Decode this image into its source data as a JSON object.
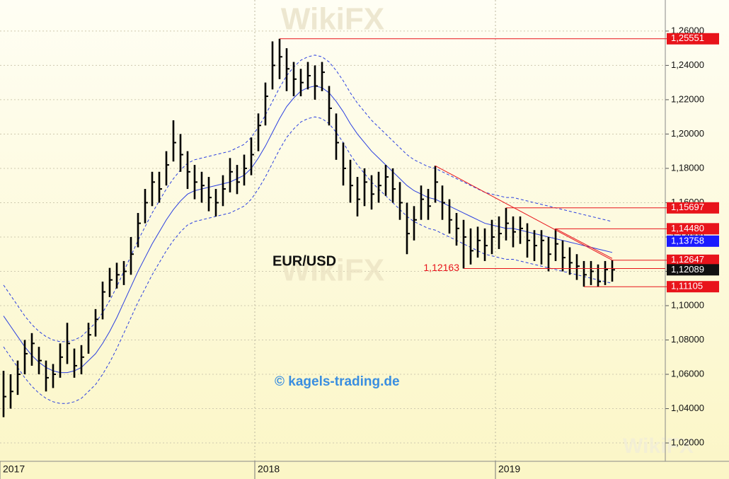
{
  "chart_data": {
    "type": "ohlc",
    "title": "EUR/USD",
    "credit": "© kagels-trading.de",
    "watermark": "WikiFX",
    "categories": [
      "2017",
      null,
      null,
      null,
      null,
      null,
      null,
      null,
      null,
      null,
      null,
      null,
      null,
      null,
      null,
      null,
      null,
      null,
      null,
      null,
      null,
      null,
      null,
      null,
      null,
      null,
      null,
      null,
      null,
      null,
      null,
      null,
      null,
      null,
      null,
      null,
      "2018",
      null,
      null,
      null,
      null,
      null,
      null,
      null,
      null,
      null,
      null,
      null,
      null,
      null,
      null,
      null,
      null,
      null,
      null,
      null,
      null,
      null,
      null,
      null,
      null,
      null,
      null,
      null,
      null,
      null,
      null,
      null,
      null,
      null,
      "2019",
      null,
      null,
      null,
      null,
      null,
      null,
      null,
      null,
      null,
      null,
      null,
      null,
      null,
      null,
      null,
      null
    ],
    "high": [
      1.062,
      1.06,
      1.068,
      1.08,
      1.084,
      1.076,
      1.068,
      1.066,
      1.078,
      1.09,
      1.075,
      1.077,
      1.09,
      1.098,
      1.114,
      1.122,
      1.125,
      1.126,
      1.14,
      1.154,
      1.168,
      1.178,
      1.178,
      1.19,
      1.208,
      1.2,
      1.19,
      1.182,
      1.178,
      1.175,
      1.168,
      1.176,
      1.186,
      1.182,
      1.188,
      1.198,
      1.212,
      1.23,
      1.254,
      1.25551,
      1.25,
      1.242,
      1.238,
      1.242,
      1.24,
      1.242,
      1.228,
      1.212,
      1.195,
      1.185,
      1.175,
      1.18,
      1.176,
      1.178,
      1.182,
      1.18,
      1.172,
      1.16,
      1.158,
      1.17,
      1.168,
      1.1815,
      1.17,
      1.162,
      1.154,
      1.15,
      1.145,
      1.146,
      1.145,
      1.15,
      1.152,
      1.15697,
      1.152,
      1.152,
      1.148,
      1.144,
      1.144,
      1.14,
      1.1448,
      1.138,
      1.134,
      1.13,
      1.126,
      1.126,
      1.124,
      1.126,
      1.12647
    ],
    "low": [
      1.035,
      1.04,
      1.048,
      1.06,
      1.065,
      1.06,
      1.05,
      1.052,
      1.058,
      1.066,
      1.058,
      1.06,
      1.072,
      1.082,
      1.092,
      1.105,
      1.11,
      1.112,
      1.118,
      1.134,
      1.148,
      1.158,
      1.16,
      1.17,
      1.184,
      1.178,
      1.168,
      1.162,
      1.16,
      1.155,
      1.152,
      1.158,
      1.166,
      1.165,
      1.17,
      1.176,
      1.19,
      1.205,
      1.226,
      1.232,
      1.225,
      1.222,
      1.222,
      1.226,
      1.22,
      1.225,
      1.205,
      1.185,
      1.17,
      1.16,
      1.152,
      1.158,
      1.156,
      1.16,
      1.164,
      1.16,
      1.15,
      1.13,
      1.138,
      1.15,
      1.15,
      1.16,
      1.15,
      1.142,
      1.135,
      1.12163,
      1.124,
      1.128,
      1.126,
      1.13,
      1.133,
      1.138,
      1.134,
      1.136,
      1.128,
      1.126,
      1.124,
      1.12,
      1.126,
      1.12,
      1.118,
      1.115,
      1.11105,
      1.112,
      1.111,
      1.112,
      1.114
    ],
    "close": [
      1.047,
      1.05,
      1.06,
      1.072,
      1.078,
      1.068,
      1.058,
      1.06,
      1.07,
      1.078,
      1.065,
      1.07,
      1.083,
      1.092,
      1.108,
      1.115,
      1.118,
      1.12,
      1.13,
      1.148,
      1.16,
      1.172,
      1.168,
      1.182,
      1.195,
      1.188,
      1.178,
      1.172,
      1.17,
      1.163,
      1.16,
      1.168,
      1.178,
      1.172,
      1.18,
      1.188,
      1.205,
      1.222,
      1.24,
      1.245,
      1.238,
      1.232,
      1.23,
      1.234,
      1.228,
      1.236,
      1.215,
      1.195,
      1.18,
      1.17,
      1.162,
      1.172,
      1.165,
      1.17,
      1.175,
      1.168,
      1.16,
      1.142,
      1.15,
      1.162,
      1.158,
      1.172,
      1.16,
      1.15,
      1.145,
      1.14,
      1.132,
      1.138,
      1.135,
      1.14,
      1.142,
      1.148,
      1.143,
      1.145,
      1.138,
      1.135,
      1.138,
      1.13,
      1.136,
      1.128,
      1.125,
      1.123,
      1.118,
      1.12,
      1.114,
      1.121,
      1.12089
    ],
    "color": "#000000",
    "overlays": [
      {
        "color": "#2b3fe0",
        "dashed": false,
        "values": [
          1.094,
          1.088,
          1.082,
          1.076,
          1.071,
          1.067,
          1.064,
          1.062,
          1.061,
          1.061,
          1.062,
          1.064,
          1.068,
          1.072,
          1.078,
          1.085,
          1.093,
          1.102,
          1.111,
          1.12,
          1.128,
          1.136,
          1.143,
          1.15,
          1.156,
          1.161,
          1.165,
          1.167,
          1.168,
          1.169,
          1.17,
          1.171,
          1.172,
          1.174,
          1.176,
          1.18,
          1.186,
          1.193,
          1.201,
          1.209,
          1.216,
          1.221,
          1.225,
          1.227,
          1.228,
          1.227,
          1.224,
          1.219,
          1.213,
          1.206,
          1.2,
          1.195,
          1.19,
          1.186,
          1.182,
          1.178,
          1.174,
          1.17,
          1.167,
          1.165,
          1.163,
          1.162,
          1.16,
          1.158,
          1.156,
          1.154,
          1.152,
          1.15,
          1.148,
          1.147,
          1.146,
          1.145,
          1.145,
          1.144,
          1.143,
          1.142,
          1.141,
          1.14,
          1.139,
          1.138,
          1.137,
          1.136,
          1.135,
          1.134,
          1.133,
          1.132,
          1.131
        ]
      },
      {
        "color": "#2b3fe0",
        "dashed": true,
        "values": [
          1.112,
          1.106,
          1.1,
          1.094,
          1.089,
          1.085,
          1.082,
          1.08,
          1.079,
          1.079,
          1.08,
          1.082,
          1.086,
          1.09,
          1.096,
          1.103,
          1.111,
          1.12,
          1.129,
          1.138,
          1.146,
          1.154,
          1.161,
          1.168,
          1.174,
          1.179,
          1.183,
          1.185,
          1.186,
          1.187,
          1.188,
          1.189,
          1.19,
          1.192,
          1.194,
          1.198,
          1.204,
          1.211,
          1.219,
          1.227,
          1.234,
          1.239,
          1.243,
          1.245,
          1.246,
          1.245,
          1.242,
          1.237,
          1.231,
          1.224,
          1.218,
          1.213,
          1.208,
          1.204,
          1.2,
          1.196,
          1.192,
          1.188,
          1.185,
          1.183,
          1.181,
          1.18,
          1.178,
          1.176,
          1.174,
          1.172,
          1.17,
          1.168,
          1.166,
          1.165,
          1.164,
          1.163,
          1.163,
          1.162,
          1.161,
          1.16,
          1.159,
          1.158,
          1.157,
          1.156,
          1.155,
          1.154,
          1.153,
          1.152,
          1.151,
          1.15,
          1.149
        ]
      },
      {
        "color": "#2b3fe0",
        "dashed": true,
        "values": [
          1.076,
          1.07,
          1.064,
          1.058,
          1.053,
          1.049,
          1.046,
          1.044,
          1.043,
          1.043,
          1.044,
          1.046,
          1.05,
          1.054,
          1.06,
          1.067,
          1.075,
          1.084,
          1.093,
          1.102,
          1.11,
          1.118,
          1.125,
          1.132,
          1.138,
          1.143,
          1.147,
          1.149,
          1.15,
          1.151,
          1.152,
          1.153,
          1.154,
          1.156,
          1.158,
          1.162,
          1.168,
          1.175,
          1.183,
          1.191,
          1.198,
          1.203,
          1.207,
          1.209,
          1.21,
          1.209,
          1.206,
          1.201,
          1.195,
          1.188,
          1.182,
          1.177,
          1.172,
          1.168,
          1.164,
          1.16,
          1.156,
          1.152,
          1.149,
          1.147,
          1.145,
          1.144,
          1.142,
          1.14,
          1.138,
          1.136,
          1.134,
          1.132,
          1.13,
          1.129,
          1.128,
          1.127,
          1.127,
          1.126,
          1.125,
          1.124,
          1.123,
          1.122,
          1.121,
          1.12,
          1.119,
          1.118,
          1.117,
          1.116,
          1.115,
          1.114,
          1.113
        ]
      }
    ],
    "levels": [
      {
        "value": 1.25551,
        "label": "1,25551",
        "color": "#e8141b",
        "from": 39,
        "label_side": "axis"
      },
      {
        "value": 1.15697,
        "label": "1,15697",
        "color": "#e8141b",
        "from": 71,
        "label_side": "axis"
      },
      {
        "value": 1.1448,
        "label": "1,14480",
        "color": "#e8141b",
        "from": 78,
        "label_side": "axis"
      },
      {
        "value": 1.13758,
        "label": "1,13758",
        "color": "#1a1aff",
        "from": null,
        "label_side": "axis"
      },
      {
        "value": 1.12647,
        "label": "1,12647",
        "color": "#e8141b",
        "from": 86,
        "label_side": "axis"
      },
      {
        "value": 1.12089,
        "label": "1,12089",
        "color": "#111111",
        "from": null,
        "label_side": "axis"
      },
      {
        "value": 1.11105,
        "label": "1,11105",
        "color": "#e8141b",
        "from": 82,
        "label_side": "axis"
      },
      {
        "value": 1.12163,
        "label": "1,12163",
        "color": "#e8141b",
        "from": 65,
        "label_side": "plot"
      }
    ],
    "trendlines": [
      {
        "color": "#e8141b",
        "x": [
          61,
          86
        ],
        "values": [
          1.1815,
          1.1265
        ]
      },
      {
        "color": "#e8141b",
        "x": [
          78,
          86
        ],
        "values": [
          1.1448,
          1.1275
        ]
      }
    ],
    "ylim": [
      1.0093,
      1.2781
    ],
    "yticks": [
      {
        "value": 1.02,
        "label": "1,02000"
      },
      {
        "value": 1.04,
        "label": "1,04000"
      },
      {
        "value": 1.06,
        "label": "1,06000"
      },
      {
        "value": 1.08,
        "label": "1,08000"
      },
      {
        "value": 1.1,
        "label": "1,10000"
      },
      {
        "value": 1.12,
        "label": "1,12000"
      },
      {
        "value": 1.14,
        "label": "1,14000"
      },
      {
        "value": 1.16,
        "label": "1,16000"
      },
      {
        "value": 1.18,
        "label": "1,18000"
      },
      {
        "value": 1.2,
        "label": "1,20000"
      },
      {
        "value": 1.22,
        "label": "1,22000"
      },
      {
        "value": 1.24,
        "label": "1,24000"
      },
      {
        "value": 1.26,
        "label": "1,26000"
      }
    ],
    "grid": true
  }
}
